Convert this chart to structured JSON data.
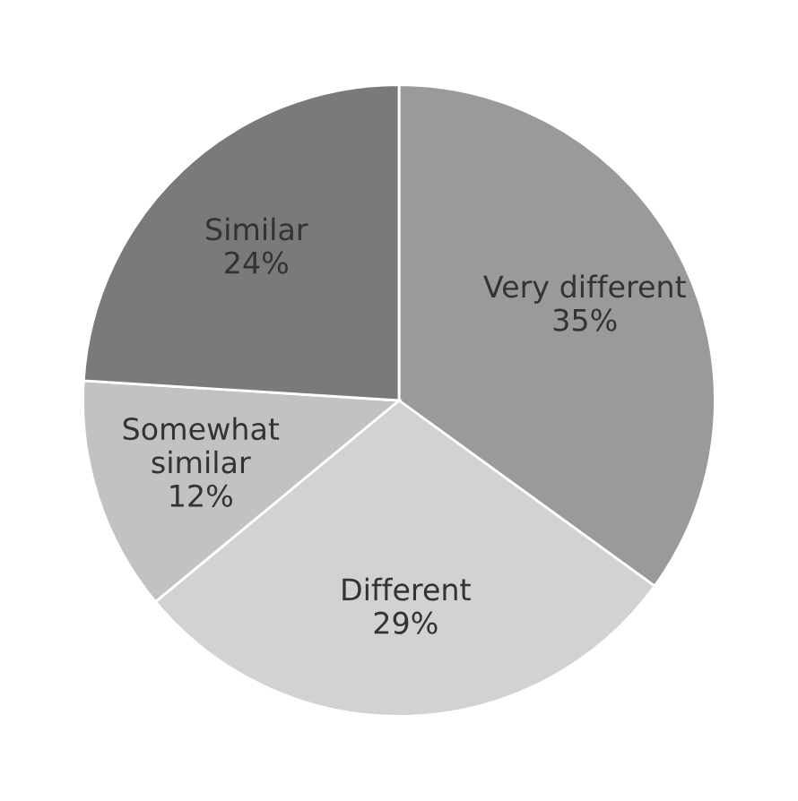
{
  "chart_data": {
    "type": "pie",
    "categories": [
      "Very different",
      "Different",
      "Somewhat\nsimilar",
      "Similar"
    ],
    "values": [
      35,
      29,
      12,
      24
    ],
    "colors": [
      "#9a9a9a",
      "#d2d2d2",
      "#c2c2c2",
      "#7a7a7a"
    ],
    "value_labels": [
      "35%",
      "29%",
      "12%",
      "24%"
    ]
  }
}
